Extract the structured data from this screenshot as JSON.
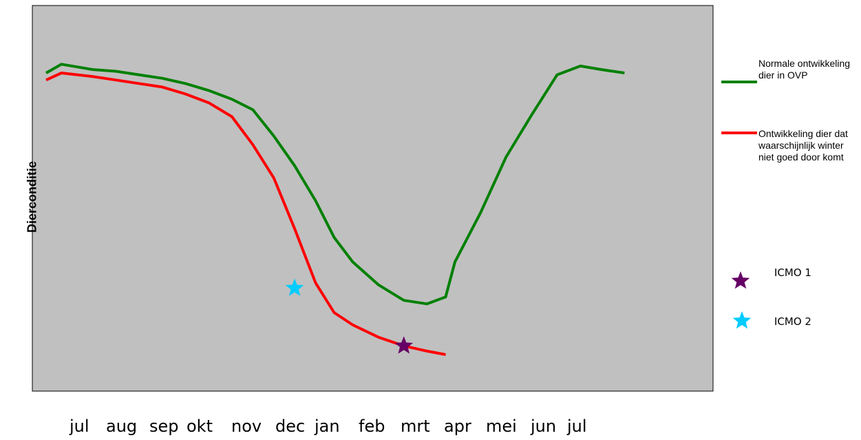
{
  "chart_data": {
    "type": "line",
    "title": "",
    "xlabel": "",
    "ylabel": "Dierconditie",
    "grid": false,
    "legend_position": "right",
    "plot_background": "#c0c0c0",
    "categories": [
      "jul",
      "aug",
      "sep",
      "okt",
      "nov",
      "dec",
      "jan",
      "feb",
      "mrt",
      "apr",
      "mei",
      "jun",
      "jul"
    ],
    "ylim": [
      0,
      100
    ],
    "series": [
      {
        "name": "Normale ontwikkeling dier in OVP",
        "color": "#008000",
        "x": [
          0,
          0.33,
          1.0,
          1.5,
          2.0,
          2.5,
          3.0,
          3.5,
          4.0,
          4.45,
          4.9,
          5.35,
          5.8,
          6.2,
          6.6,
          7.15,
          7.7,
          8.2,
          8.6,
          8.8,
          9.35,
          9.9,
          10.45,
          11.0,
          11.5,
          11.95,
          12.45
        ],
        "y": [
          87,
          89.5,
          88,
          87.5,
          86.5,
          85.5,
          84,
          82,
          79.5,
          76.5,
          69,
          60.5,
          50.5,
          40,
          33,
          26.5,
          22,
          21,
          23,
          33,
          47,
          63,
          75,
          86.5,
          89,
          88,
          87
        ]
      },
      {
        "name": "Ontwikkeling dier dat waarschijnlijk winter niet goed door komt",
        "color": "#ff0000",
        "x": [
          0,
          0.33,
          1.0,
          1.5,
          2.0,
          2.5,
          3.0,
          3.5,
          4.0,
          4.45,
          4.9,
          5.35,
          5.8,
          6.2,
          6.6,
          7.15,
          7.7,
          8.2,
          8.6
        ],
        "y": [
          85,
          87,
          86,
          85,
          84,
          83,
          81,
          78.5,
          74.5,
          66.5,
          57,
          42.5,
          27,
          18.5,
          15,
          11.5,
          9,
          7.5,
          6.5
        ]
      }
    ],
    "markers": [
      {
        "name": "ICMO 1",
        "symbol": "star",
        "color": "#660066",
        "x": 7.7,
        "y": 9,
        "label": "ICMO 1"
      },
      {
        "name": "ICMO 2",
        "symbol": "star",
        "color": "#00ccff",
        "x": 5.35,
        "y": 25.5,
        "label": "ICMO 2"
      }
    ]
  }
}
